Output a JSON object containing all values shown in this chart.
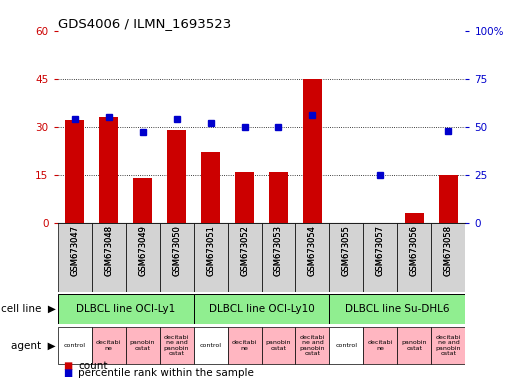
{
  "title": "GDS4006 / ILMN_1693523",
  "samples": [
    "GSM673047",
    "GSM673048",
    "GSM673049",
    "GSM673050",
    "GSM673051",
    "GSM673052",
    "GSM673053",
    "GSM673054",
    "GSM673055",
    "GSM673057",
    "GSM673056",
    "GSM673058"
  ],
  "counts": [
    32,
    33,
    14,
    29,
    22,
    16,
    16,
    45,
    0,
    0,
    3,
    15
  ],
  "percentiles": [
    54,
    55,
    47,
    54,
    52,
    50,
    50,
    56,
    0,
    25,
    0,
    48
  ],
  "bar_color": "#CC0000",
  "dot_color": "#0000CC",
  "ylim_left": [
    0,
    60
  ],
  "ylim_right": [
    0,
    100
  ],
  "yticks_left": [
    0,
    15,
    30,
    45,
    60
  ],
  "yticks_right": [
    0,
    25,
    50,
    75,
    100
  ],
  "ylabel_left_color": "#CC0000",
  "ylabel_right_color": "#0000CC",
  "background_color": "#ffffff",
  "cell_line_groups": [
    {
      "label": "DLBCL line OCI-Ly1",
      "indices": [
        0,
        1,
        2,
        3
      ],
      "color": "#90EE90"
    },
    {
      "label": "DLBCL line OCI-Ly10",
      "indices": [
        4,
        5,
        6,
        7
      ],
      "color": "#90EE90"
    },
    {
      "label": "DLBCL line Su-DHL6",
      "indices": [
        8,
        9,
        10,
        11
      ],
      "color": "#90EE90"
    }
  ],
  "agents": [
    "control",
    "decitabine",
    "panobin ostat",
    "decitabine and\npanobin ostat",
    "control",
    "decitabine",
    "panobin ostat",
    "decitabine and\npanobin ostat",
    "control",
    "decitabine",
    "panobin ostat",
    "decitabine and\npanobin ostat"
  ],
  "agent_display": [
    "control",
    "decitabi\nne",
    "panobin\nostat",
    "decitabi\nne and\npanobin\nostat",
    "control",
    "decitabi\nne",
    "panobin\nostat",
    "decitabi\nne and\npanobin\nostat",
    "control",
    "decitabi\nne",
    "panobin\nostat",
    "decitabi\nne and\npanobin\nostat"
  ],
  "agent_colors": [
    "#ffffff",
    "#FFB6C1",
    "#FFB6C1",
    "#FFB6C1",
    "#ffffff",
    "#FFB6C1",
    "#FFB6C1",
    "#FFB6C1",
    "#ffffff",
    "#FFB6C1",
    "#FFB6C1",
    "#FFB6C1"
  ],
  "sample_bg": "#D3D3D3",
  "legend_items": [
    {
      "color": "#CC0000",
      "label": "count"
    },
    {
      "color": "#0000CC",
      "label": "percentile rank within the sample"
    }
  ]
}
